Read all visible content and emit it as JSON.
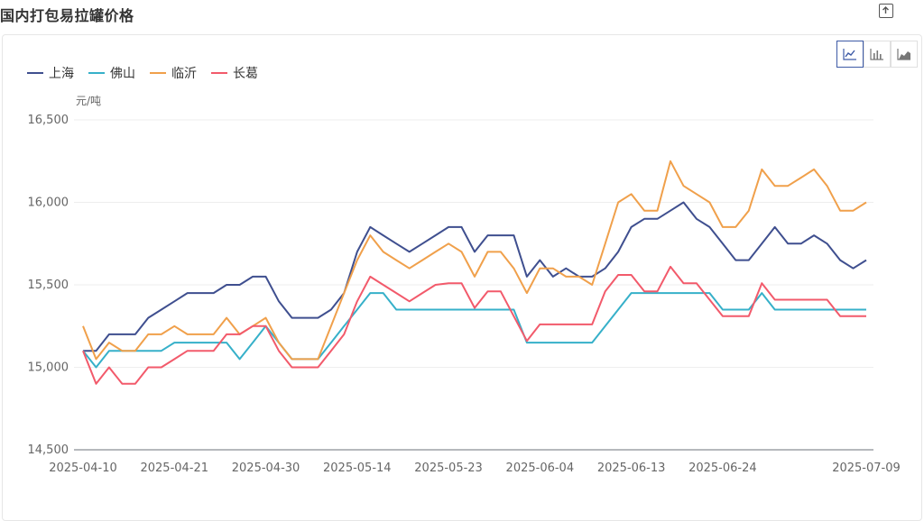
{
  "page": {
    "title": "国内打包易拉罐价格"
  },
  "chart_data": {
    "type": "line",
    "ylabel": "元/吨",
    "ylim": [
      14500,
      16500
    ],
    "yticks": [
      14500,
      15000,
      15500,
      16000,
      16500
    ],
    "ytick_labels": [
      "14,500",
      "15,000",
      "15,500",
      "16,000",
      "16,500"
    ],
    "xtick_labels": [
      "2025-04-10",
      "2025-04-21",
      "2025-04-30",
      "2025-05-14",
      "2025-05-23",
      "2025-06-04",
      "2025-06-13",
      "2025-06-24",
      "2025-07-09"
    ],
    "xtick_index": [
      0,
      7,
      14,
      21,
      28,
      35,
      42,
      49,
      60
    ],
    "grid": true,
    "legend_position": "top-left",
    "series": [
      {
        "name": "上海",
        "color": "#3f4f8f",
        "values": [
          15100,
          15100,
          15200,
          15200,
          15200,
          15300,
          15350,
          15400,
          15450,
          15450,
          15450,
          15500,
          15500,
          15550,
          15550,
          15400,
          15300,
          15300,
          15300,
          15350,
          15450,
          15700,
          15850,
          15800,
          15750,
          15700,
          15750,
          15800,
          15850,
          15850,
          15700,
          15800,
          15800,
          15800,
          15550,
          15650,
          15550,
          15600,
          15550,
          15550,
          15600,
          15700,
          15850,
          15900,
          15900,
          15950,
          16000,
          15900,
          15850,
          15750,
          15650,
          15650,
          15750,
          15850,
          15750,
          15750,
          15800,
          15750,
          15650,
          15600,
          15650
        ]
      },
      {
        "name": "佛山",
        "color": "#36b0c9",
        "values": [
          15100,
          15000,
          15100,
          15100,
          15100,
          15100,
          15100,
          15150,
          15150,
          15150,
          15150,
          15150,
          15050,
          15150,
          15250,
          15150,
          15050,
          15050,
          15050,
          15150,
          15250,
          15350,
          15450,
          15450,
          15350,
          15350,
          15350,
          15350,
          15350,
          15350,
          15350,
          15350,
          15350,
          15350,
          15150,
          15150,
          15150,
          15150,
          15150,
          15150,
          15250,
          15350,
          15450,
          15450,
          15450,
          15450,
          15450,
          15450,
          15450,
          15350,
          15350,
          15350,
          15450,
          15350,
          15350,
          15350,
          15350,
          15350,
          15350,
          15350,
          15350
        ]
      },
      {
        "name": "临沂",
        "color": "#f0a04b",
        "values": [
          15250,
          15050,
          15150,
          15100,
          15100,
          15200,
          15200,
          15250,
          15200,
          15200,
          15200,
          15300,
          15200,
          15250,
          15300,
          15150,
          15050,
          15050,
          15050,
          15250,
          15450,
          15650,
          15800,
          15700,
          15650,
          15600,
          15650,
          15700,
          15750,
          15700,
          15550,
          15700,
          15700,
          15600,
          15450,
          15600,
          15600,
          15550,
          15550,
          15500,
          15750,
          16000,
          16050,
          15950,
          15950,
          16250,
          16100,
          16050,
          16000,
          15850,
          15850,
          15950,
          16200,
          16100,
          16100,
          16150,
          16200,
          16100,
          15950,
          15950,
          16000
        ]
      },
      {
        "name": "长葛",
        "color": "#f25a6b",
        "values": [
          15100,
          14900,
          15000,
          14900,
          14900,
          15000,
          15000,
          15050,
          15100,
          15100,
          15100,
          15200,
          15200,
          15250,
          15250,
          15100,
          15000,
          15000,
          15000,
          15100,
          15200,
          15400,
          15550,
          15500,
          15450,
          15400,
          15450,
          15500,
          15510,
          15510,
          15360,
          15460,
          15460,
          15310,
          15160,
          15260,
          15260,
          15260,
          15260,
          15260,
          15460,
          15560,
          15560,
          15460,
          15460,
          15610,
          15510,
          15510,
          15410,
          15310,
          15310,
          15310,
          15510,
          15410,
          15410,
          15410,
          15410,
          15410,
          15310,
          15310,
          15310
        ]
      }
    ]
  }
}
